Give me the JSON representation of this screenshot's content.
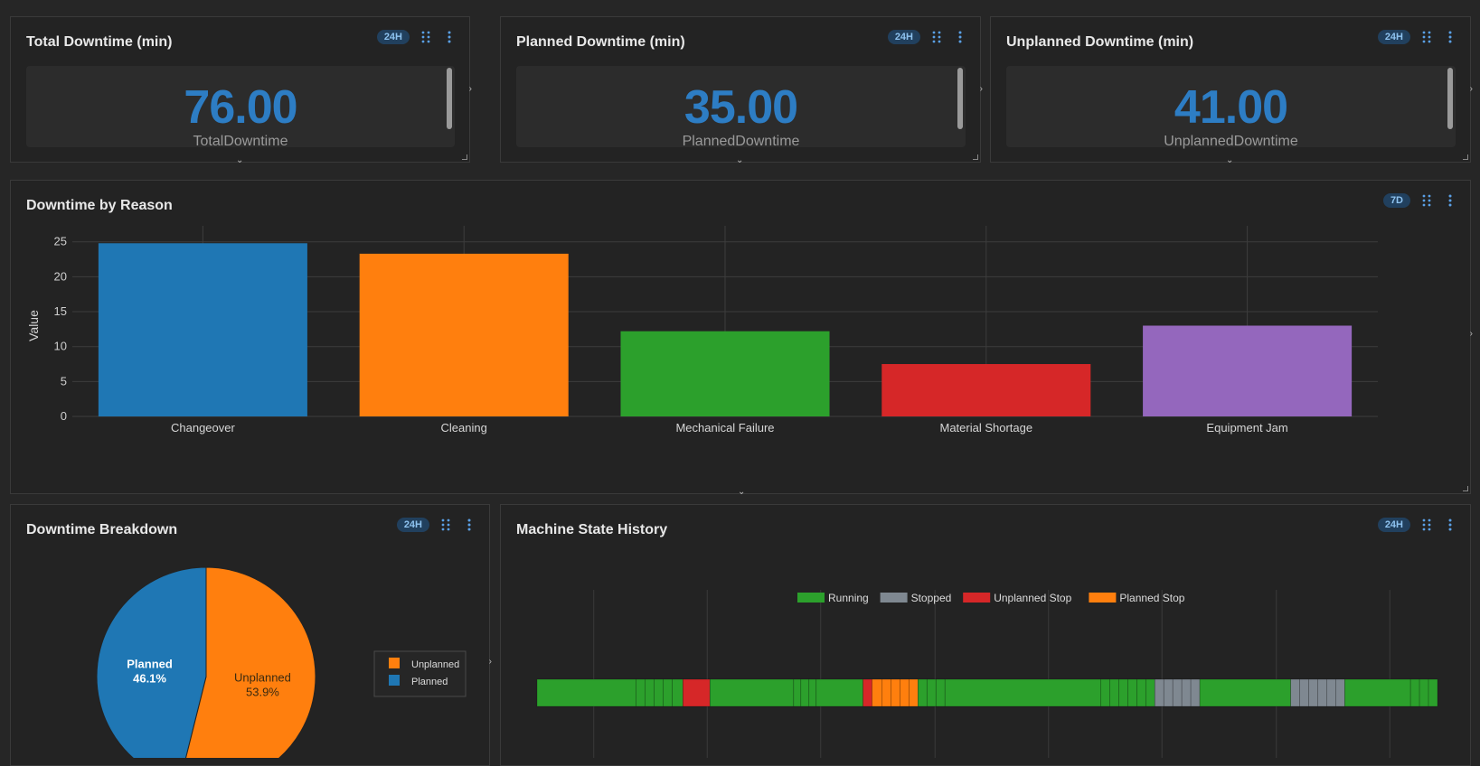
{
  "colors": {
    "accent": "#2d7dc4",
    "badge_bg": "#21405e",
    "badge_text": "#8ec3f0",
    "panel_bg": "#232323"
  },
  "stats": [
    {
      "title": "Total Downtime (min)",
      "badge": "24H",
      "value": "76.00",
      "label": "TotalDowntime"
    },
    {
      "title": "Planned Downtime (min)",
      "badge": "24H",
      "value": "35.00",
      "label": "PlannedDowntime"
    },
    {
      "title": "Unplanned Downtime (min)",
      "badge": "24H",
      "value": "41.00",
      "label": "UnplannedDowntime"
    }
  ],
  "reason_panel": {
    "title": "Downtime by Reason",
    "badge": "7D"
  },
  "breakdown_panel": {
    "title": "Downtime Breakdown",
    "badge": "24H"
  },
  "history_panel": {
    "title": "Machine State History",
    "badge": "24H"
  },
  "icons": {
    "drag": "drag-handle-icon",
    "menu": "kebab-menu-icon"
  },
  "chart_data": [
    {
      "type": "bar",
      "title": "",
      "xlabel": "",
      "ylabel": "Value",
      "ylim": [
        0,
        26
      ],
      "yticks": [
        0,
        5,
        10,
        15,
        20,
        25
      ],
      "grid": true,
      "categories": [
        "Changeover",
        "Cleaning",
        "Mechanical Failure",
        "Material Shortage",
        "Equipment Jam"
      ],
      "values": [
        24.8,
        23.3,
        12.2,
        7.5,
        13.0
      ],
      "colors": [
        "#1f77b4",
        "#ff7f0e",
        "#2ca02c",
        "#d62728",
        "#9467bd"
      ]
    },
    {
      "type": "pie",
      "labels": [
        "Unplanned",
        "Planned"
      ],
      "values": [
        53.9,
        46.1
      ],
      "display": [
        "53.9%",
        "46.1%"
      ],
      "colors": [
        "#ff7f0e",
        "#1f77b4"
      ],
      "legend": "right"
    },
    {
      "type": "timeline",
      "legend_position": "top",
      "states": [
        {
          "name": "Running",
          "color": "#2ca02c"
        },
        {
          "name": "Stopped",
          "color": "#7f8891"
        },
        {
          "name": "Unplanned Stop",
          "color": "#d62728"
        },
        {
          "name": "Planned Stop",
          "color": "#ff7f0e"
        }
      ],
      "segments": [
        {
          "state": "Running",
          "start": 0,
          "end": 11
        },
        {
          "state": "Running",
          "start": 11,
          "end": 12
        },
        {
          "state": "Running",
          "start": 12,
          "end": 13
        },
        {
          "state": "Running",
          "start": 13,
          "end": 14
        },
        {
          "state": "Running",
          "start": 14,
          "end": 15
        },
        {
          "state": "Running",
          "start": 15,
          "end": 16.2
        },
        {
          "state": "Unplanned Stop",
          "start": 16.2,
          "end": 19.2
        },
        {
          "state": "Running",
          "start": 19.2,
          "end": 28.5
        },
        {
          "state": "Running",
          "start": 28.5,
          "end": 29.3
        },
        {
          "state": "Running",
          "start": 29.3,
          "end": 30.2
        },
        {
          "state": "Running",
          "start": 30.2,
          "end": 31.0
        },
        {
          "state": "Running",
          "start": 31.0,
          "end": 36.2
        },
        {
          "state": "Unplanned Stop",
          "start": 36.2,
          "end": 37.2
        },
        {
          "state": "Planned Stop",
          "start": 37.2,
          "end": 38.3
        },
        {
          "state": "Planned Stop",
          "start": 38.3,
          "end": 39.3
        },
        {
          "state": "Planned Stop",
          "start": 39.3,
          "end": 40.3
        },
        {
          "state": "Planned Stop",
          "start": 40.3,
          "end": 41.3
        },
        {
          "state": "Planned Stop",
          "start": 41.3,
          "end": 42.3
        },
        {
          "state": "Running",
          "start": 42.3,
          "end": 43.3
        },
        {
          "state": "Running",
          "start": 43.3,
          "end": 44.3
        },
        {
          "state": "Running",
          "start": 44.3,
          "end": 45.3
        },
        {
          "state": "Running",
          "start": 45.3,
          "end": 62.6
        },
        {
          "state": "Running",
          "start": 62.6,
          "end": 63.6
        },
        {
          "state": "Running",
          "start": 63.6,
          "end": 64.6
        },
        {
          "state": "Running",
          "start": 64.6,
          "end": 65.6
        },
        {
          "state": "Running",
          "start": 65.6,
          "end": 66.6
        },
        {
          "state": "Running",
          "start": 66.6,
          "end": 67.6
        },
        {
          "state": "Running",
          "start": 67.6,
          "end": 68.6
        },
        {
          "state": "Stopped",
          "start": 68.6,
          "end": 69.6
        },
        {
          "state": "Stopped",
          "start": 69.6,
          "end": 70.6
        },
        {
          "state": "Stopped",
          "start": 70.6,
          "end": 71.6
        },
        {
          "state": "Stopped",
          "start": 71.6,
          "end": 72.6
        },
        {
          "state": "Stopped",
          "start": 72.6,
          "end": 73.6
        },
        {
          "state": "Running",
          "start": 73.6,
          "end": 83.7
        },
        {
          "state": "Stopped",
          "start": 83.7,
          "end": 84.7
        },
        {
          "state": "Stopped",
          "start": 84.7,
          "end": 85.7
        },
        {
          "state": "Stopped",
          "start": 85.7,
          "end": 86.7
        },
        {
          "state": "Stopped",
          "start": 86.7,
          "end": 87.7
        },
        {
          "state": "Stopped",
          "start": 87.7,
          "end": 88.7
        },
        {
          "state": "Stopped",
          "start": 88.7,
          "end": 89.7
        },
        {
          "state": "Running",
          "start": 89.7,
          "end": 97.0
        },
        {
          "state": "Running",
          "start": 97.0,
          "end": 98.0
        },
        {
          "state": "Running",
          "start": 98.0,
          "end": 99.0
        },
        {
          "state": "Running",
          "start": 99.0,
          "end": 100
        }
      ],
      "range": [
        0,
        100
      ],
      "grid_x": [
        6.3,
        18.9,
        31.5,
        44.2,
        56.8,
        69.4,
        82.1,
        94.7
      ]
    }
  ]
}
